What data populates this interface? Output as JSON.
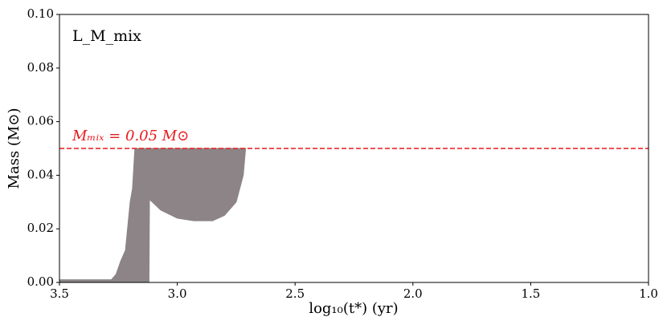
{
  "chart_data": {
    "type": "area",
    "label": "L_M_mix",
    "xlabel": "log₁₀(t*) (yr)",
    "ylabel": "Mass (M⊙)",
    "annotation": "Mₘᵢₓ = 0.05 M⊙",
    "hline": {
      "value": 0.05,
      "color": "#e8191c"
    },
    "xlim": [
      3.5,
      1.0
    ],
    "ylim": [
      0,
      0.1
    ],
    "xticks": [
      3.5,
      {
        "value": 3,
        "label": "3.0"
      },
      2.5,
      {
        "value": 2,
        "label": "2.0"
      },
      1.5,
      {
        "value": 1,
        "label": "1.0"
      }
    ],
    "yticks": [
      {
        "value": 0,
        "label": "0.00"
      },
      {
        "value": 0.02,
        "label": "0.02"
      },
      {
        "value": 0.04,
        "label": "0.04"
      },
      {
        "value": 0.06,
        "label": "0.06"
      },
      {
        "value": 0.08,
        "label": "0.08"
      },
      {
        "value": 0.1,
        "label": "0.10"
      }
    ],
    "color": "#8c8486",
    "x": [
      3.5,
      3.28,
      3.26,
      3.24,
      3.22,
      3.2,
      3.19,
      3.18,
      3.12,
      3.118,
      3.07,
      3.0,
      2.93,
      2.85,
      2.8,
      2.75,
      2.72,
      2.71
    ],
    "upper": [
      0.001,
      0.001,
      0.003,
      0.008,
      0.012,
      0.03,
      0.035,
      0.05,
      0.05,
      0.05,
      0.05,
      0.05,
      0.05,
      0.05,
      0.05,
      0.05,
      0.05,
      0.05
    ],
    "lower": [
      0,
      0,
      0,
      0,
      0,
      0,
      0,
      0,
      0,
      0.031,
      0.027,
      0.024,
      0.023,
      0.023,
      0.025,
      0.03,
      0.04,
      0.05
    ]
  }
}
